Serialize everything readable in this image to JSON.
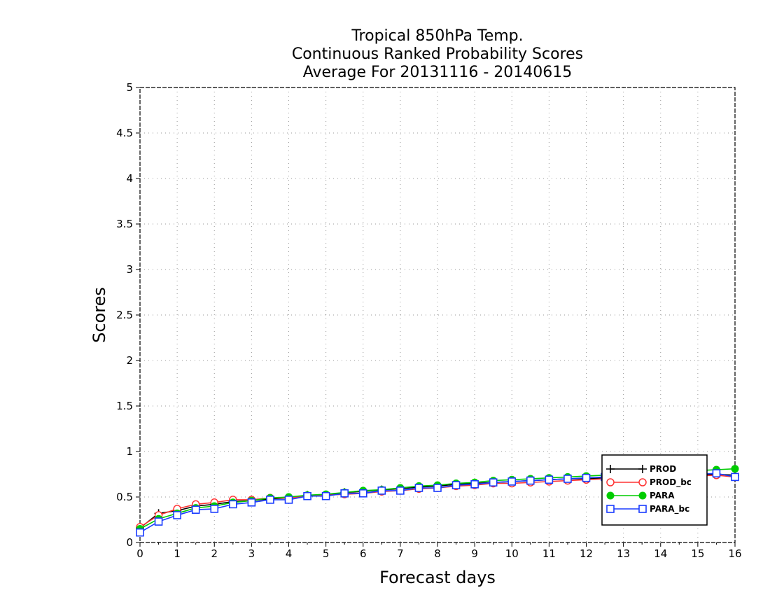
{
  "chart_data": {
    "type": "line",
    "title_lines": [
      "Tropical 850hPa Temp.",
      "Continuous Ranked Probability Scores",
      "Average For 20131116 - 20140615"
    ],
    "xlabel": "Forecast days",
    "ylabel": "Scores",
    "xlim": [
      0,
      16
    ],
    "ylim": [
      0,
      5
    ],
    "x_ticks": [
      "0",
      "1",
      "2",
      "3",
      "4",
      "5",
      "6",
      "7",
      "8",
      "9",
      "10",
      "11",
      "12",
      "13",
      "14",
      "15",
      "16"
    ],
    "y_ticks": [
      "0",
      "0.5",
      "1",
      "1.5",
      "2",
      "2.5",
      "3",
      "3.5",
      "4",
      "4.5",
      "5"
    ],
    "grid": true,
    "legend_position": "bottom-right",
    "x": [
      0,
      0.5,
      1,
      1.5,
      2,
      2.5,
      3,
      3.5,
      4,
      4.5,
      5,
      5.5,
      6,
      6.5,
      7,
      7.5,
      8,
      8.5,
      9,
      9.5,
      10,
      10.5,
      11,
      11.5,
      12,
      12.5,
      13,
      13.5,
      14,
      14.5,
      15,
      15.5,
      16
    ],
    "series": [
      {
        "name": "PROD",
        "color": "#000000",
        "marker": "plus",
        "values": [
          0.16,
          0.32,
          0.35,
          0.4,
          0.42,
          0.45,
          0.46,
          0.48,
          0.49,
          0.52,
          0.52,
          0.55,
          0.56,
          0.58,
          0.59,
          0.61,
          0.62,
          0.64,
          0.65,
          0.66,
          0.67,
          0.68,
          0.69,
          0.7,
          0.7,
          0.71,
          0.72,
          0.73,
          0.73,
          0.74,
          0.74,
          0.75,
          0.74
        ]
      },
      {
        "name": "PROD_bc",
        "color": "#ff3333",
        "marker": "open-circle",
        "values": [
          0.17,
          0.3,
          0.37,
          0.42,
          0.44,
          0.47,
          0.47,
          0.49,
          0.49,
          0.51,
          0.52,
          0.53,
          0.54,
          0.56,
          0.57,
          0.59,
          0.6,
          0.62,
          0.63,
          0.65,
          0.65,
          0.66,
          0.67,
          0.68,
          0.69,
          0.7,
          0.71,
          0.72,
          0.72,
          0.73,
          0.73,
          0.74,
          0.72
        ]
      },
      {
        "name": "PARA",
        "color": "#00cc00",
        "marker": "filled-circle",
        "values": [
          0.15,
          0.26,
          0.32,
          0.38,
          0.4,
          0.44,
          0.46,
          0.49,
          0.5,
          0.52,
          0.53,
          0.55,
          0.57,
          0.58,
          0.6,
          0.62,
          0.63,
          0.65,
          0.66,
          0.68,
          0.69,
          0.7,
          0.71,
          0.72,
          0.73,
          0.74,
          0.75,
          0.76,
          0.77,
          0.78,
          0.79,
          0.8,
          0.81
        ]
      },
      {
        "name": "PARA_bc",
        "color": "#1a3cff",
        "marker": "open-square",
        "values": [
          0.11,
          0.23,
          0.3,
          0.36,
          0.37,
          0.42,
          0.44,
          0.47,
          0.47,
          0.51,
          0.51,
          0.54,
          0.54,
          0.57,
          0.57,
          0.6,
          0.6,
          0.63,
          0.64,
          0.66,
          0.67,
          0.68,
          0.69,
          0.7,
          0.71,
          0.72,
          0.72,
          0.73,
          0.74,
          0.75,
          0.75,
          0.76,
          0.72
        ]
      }
    ]
  }
}
